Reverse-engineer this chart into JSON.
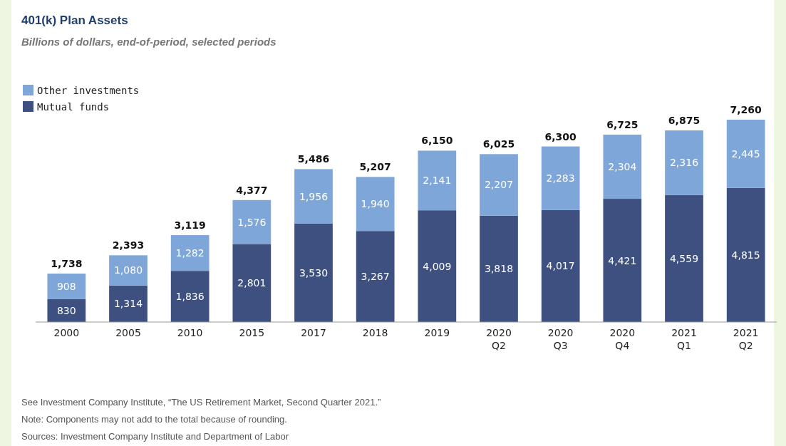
{
  "chart_data": {
    "type": "bar",
    "title": "401(k) Plan Assets",
    "subtitle": "Billions of dollars, end-of-period, selected periods",
    "categories": [
      "2000",
      "2005",
      "2010",
      "2015",
      "2017",
      "2018",
      "2019",
      "2020 Q2",
      "2020 Q3",
      "2020 Q4",
      "2021 Q1",
      "2021 Q2"
    ],
    "stacked": true,
    "legend": "top left",
    "series": [
      {
        "name": "Mutual funds",
        "color": "#3d5080",
        "values": [
          830,
          1314,
          1836,
          2801,
          3530,
          3267,
          4009,
          3818,
          4017,
          4421,
          4559,
          4815
        ],
        "value_labels": [
          "830",
          "1,314",
          "1,836",
          "2,801",
          "3,530",
          "3,267",
          "4,009",
          "3,818",
          "4,017",
          "4,421",
          "4,559",
          "4,815"
        ]
      },
      {
        "name": "Other investments",
        "color": "#7ea6d8",
        "values": [
          908,
          1080,
          1282,
          1576,
          1956,
          1940,
          2141,
          2207,
          2283,
          2304,
          2316,
          2445
        ],
        "value_labels": [
          "908",
          "1,080",
          "1,282",
          "1,576",
          "1,956",
          "1,940",
          "2,141",
          "2,207",
          "2,283",
          "2,304",
          "2,316",
          "2,445"
        ]
      }
    ],
    "totals": [
      "1,738",
      "2,393",
      "3,119",
      "4,377",
      "5,486",
      "5,207",
      "6,150",
      "6,025",
      "6,300",
      "6,725",
      "6,875",
      "7,260"
    ],
    "annotations": [
      "See Investment Company Institute, “The US Retirement Market, Second Quarter 2021.”",
      "Note: Components may not add to the total because of rounding.",
      "Sources: Investment Company Institute and Department of Labor"
    ]
  }
}
